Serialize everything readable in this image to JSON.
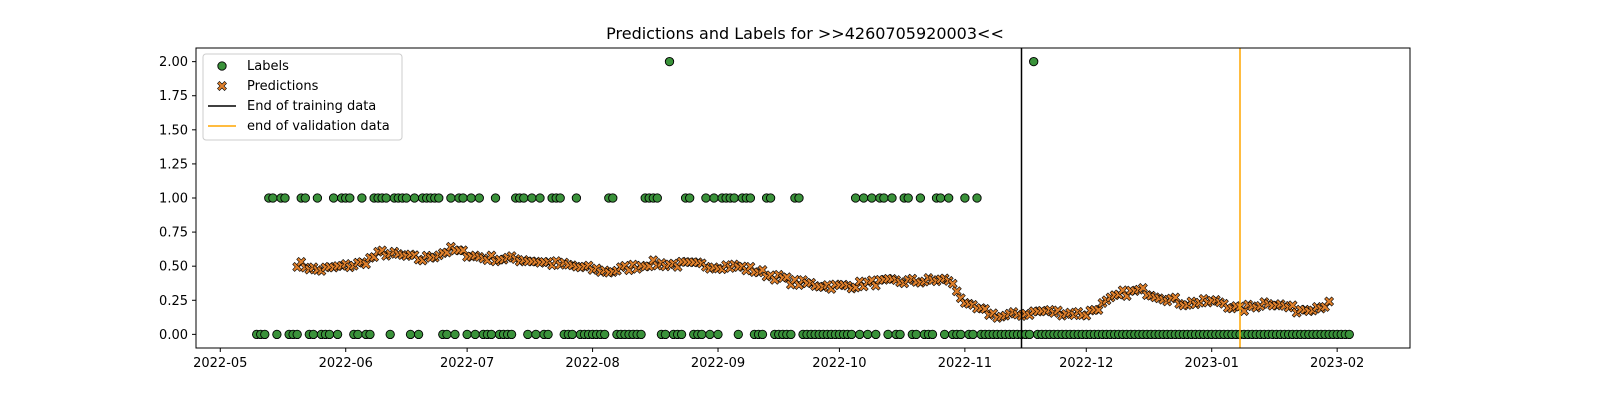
{
  "chart_data": {
    "type": "scatter",
    "title": "Predictions and Labels for >>4260705920003<<",
    "xlabel": "",
    "ylabel": "",
    "xlim": [
      "2022-04-25",
      "2023-02-19"
    ],
    "ylim": [
      -0.1,
      2.1
    ],
    "x_ticks": [
      "2022-05",
      "2022-06",
      "2022-07",
      "2022-08",
      "2022-09",
      "2022-10",
      "2022-11",
      "2022-12",
      "2023-01",
      "2023-02"
    ],
    "y_ticks": [
      "0.00",
      "0.25",
      "0.50",
      "0.75",
      "1.00",
      "1.25",
      "1.50",
      "1.75",
      "2.00"
    ],
    "grid": false,
    "legend_position": "upper-left",
    "legend": {
      "labels": "Labels",
      "predictions": "Predictions",
      "train_end": "End of training data",
      "val_end": "end of validation data"
    },
    "colors": {
      "labels_fill": "#3a923a",
      "predictions_fill": "#e1812c",
      "train_line": "#000000",
      "val_line": "#ffa500",
      "marker_edge": "#000000"
    },
    "vertical_lines": [
      {
        "name": "End of training data",
        "x": "2022-11-15",
        "color": "#000000"
      },
      {
        "name": "end of validation data",
        "x": "2023-01-08",
        "color": "#ffa500"
      }
    ],
    "series": [
      {
        "name": "Labels",
        "marker": "circle",
        "label_days": {
          "first": "2022-05-10",
          "last": "2023-02-04",
          "twos": [
            "2022-08-20",
            "2022-11-18"
          ],
          "ones": [
            "2022-05-13",
            "2022-05-14",
            "2022-05-16",
            "2022-05-17",
            "2022-05-21",
            "2022-05-22",
            "2022-05-25",
            "2022-05-29",
            "2022-05-31",
            "2022-06-01",
            "2022-06-02",
            "2022-06-05",
            "2022-06-08",
            "2022-06-09",
            "2022-06-10",
            "2022-06-11",
            "2022-06-13",
            "2022-06-14",
            "2022-06-15",
            "2022-06-16",
            "2022-06-18",
            "2022-06-20",
            "2022-06-21",
            "2022-06-22",
            "2022-06-23",
            "2022-06-24",
            "2022-06-27",
            "2022-06-29",
            "2022-06-30",
            "2022-07-02",
            "2022-07-04",
            "2022-07-08",
            "2022-07-13",
            "2022-07-14",
            "2022-07-15",
            "2022-07-17",
            "2022-07-19",
            "2022-07-22",
            "2022-07-23",
            "2022-07-24",
            "2022-07-28",
            "2022-08-05",
            "2022-08-06",
            "2022-08-14",
            "2022-08-15",
            "2022-08-16",
            "2022-08-17",
            "2022-08-20",
            "2022-08-24",
            "2022-08-25",
            "2022-08-29",
            "2022-08-31",
            "2022-09-02",
            "2022-09-03",
            "2022-09-04",
            "2022-09-05",
            "2022-09-07",
            "2022-09-08",
            "2022-09-09",
            "2022-09-13",
            "2022-09-14",
            "2022-09-20",
            "2022-09-21",
            "2022-10-05",
            "2022-10-07",
            "2022-10-09",
            "2022-10-11",
            "2022-10-12",
            "2022-10-14",
            "2022-10-17",
            "2022-10-18",
            "2022-10-21",
            "2022-10-25",
            "2022-10-26",
            "2022-10-28",
            "2022-11-01",
            "2022-11-04"
          ]
        }
      },
      {
        "name": "Predictions",
        "marker": "x",
        "anchors": [
          {
            "x": "2022-05-20",
            "y": 0.52
          },
          {
            "x": "2022-05-25",
            "y": 0.47
          },
          {
            "x": "2022-06-01",
            "y": 0.5
          },
          {
            "x": "2022-06-05",
            "y": 0.52
          },
          {
            "x": "2022-06-10",
            "y": 0.6
          },
          {
            "x": "2022-06-20",
            "y": 0.55
          },
          {
            "x": "2022-06-27",
            "y": 0.62
          },
          {
            "x": "2022-07-05",
            "y": 0.56
          },
          {
            "x": "2022-07-15",
            "y": 0.55
          },
          {
            "x": "2022-07-27",
            "y": 0.5
          },
          {
            "x": "2022-08-05",
            "y": 0.46
          },
          {
            "x": "2022-08-15",
            "y": 0.52
          },
          {
            "x": "2022-08-25",
            "y": 0.51
          },
          {
            "x": "2022-09-05",
            "y": 0.5
          },
          {
            "x": "2022-09-10",
            "y": 0.47
          },
          {
            "x": "2022-09-20",
            "y": 0.38
          },
          {
            "x": "2022-10-01",
            "y": 0.35
          },
          {
            "x": "2022-10-10",
            "y": 0.38
          },
          {
            "x": "2022-10-20",
            "y": 0.39
          },
          {
            "x": "2022-10-28",
            "y": 0.4
          },
          {
            "x": "2022-11-02",
            "y": 0.2
          },
          {
            "x": "2022-11-10",
            "y": 0.13
          },
          {
            "x": "2022-11-20",
            "y": 0.17
          },
          {
            "x": "2022-12-01",
            "y": 0.15
          },
          {
            "x": "2022-12-10",
            "y": 0.3
          },
          {
            "x": "2022-12-15",
            "y": 0.32
          },
          {
            "x": "2022-12-25",
            "y": 0.23
          },
          {
            "x": "2023-01-03",
            "y": 0.24
          },
          {
            "x": "2023-01-08",
            "y": 0.18
          },
          {
            "x": "2023-01-15",
            "y": 0.24
          },
          {
            "x": "2023-01-22",
            "y": 0.18
          },
          {
            "x": "2023-01-30",
            "y": 0.22
          }
        ]
      }
    ]
  }
}
